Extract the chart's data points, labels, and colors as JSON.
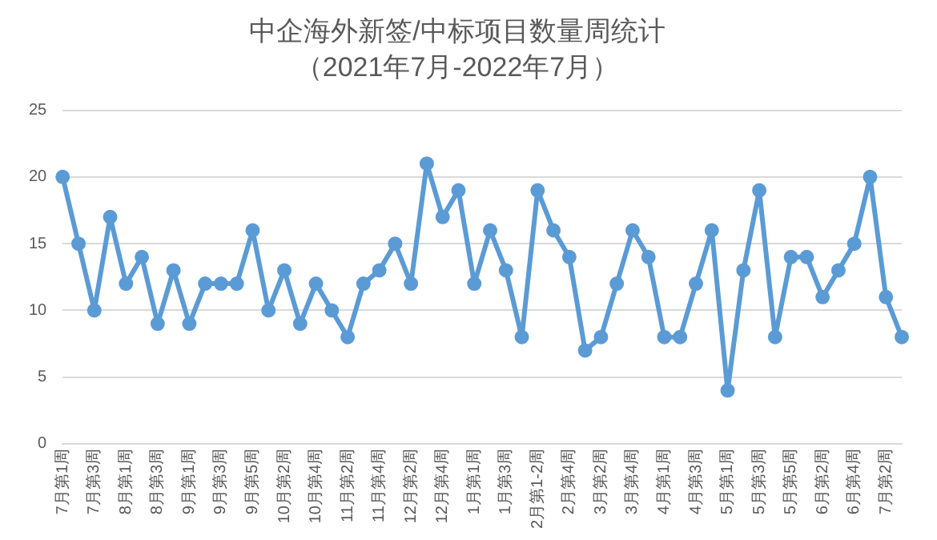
{
  "chart_data": {
    "type": "line",
    "title": "中企海外新签/中标项目数量周统计",
    "subtitle": "（2021年7月-2022年7月）",
    "categories": [
      "7月第1周",
      null,
      "7月第3周",
      null,
      "8月第1周",
      null,
      "8月第3周",
      null,
      "9月第1周",
      null,
      "9月第3周",
      null,
      "9月第5周",
      null,
      "10月第2周",
      null,
      "10月第4周",
      null,
      "11月第2周",
      null,
      "11月第4周",
      null,
      "12月第2周",
      null,
      "12月第4周",
      null,
      "1月第1周",
      null,
      "1月第3周",
      null,
      "2月第1-2周",
      null,
      "2月第4周",
      null,
      "3月第2周",
      null,
      "3月第4周",
      null,
      "4月第1周",
      null,
      "4月第3周",
      null,
      "5月第1周",
      null,
      "5月第3周",
      null,
      "5月第5周",
      null,
      "6月第2周",
      null,
      "6月第4周",
      null,
      "7月第2周",
      null
    ],
    "series": [
      {
        "color": "#5b9bd5",
        "values": [
          20,
          15,
          10,
          17,
          12,
          14,
          9,
          13,
          9,
          12,
          12,
          12,
          16,
          10,
          13,
          9,
          12,
          10,
          8,
          12,
          13,
          15,
          12,
          21,
          17,
          19,
          12,
          16,
          13,
          8,
          19,
          16,
          14,
          7,
          8,
          12,
          16,
          14,
          8,
          8,
          12,
          16,
          4,
          13,
          19,
          8,
          14,
          14,
          11,
          13,
          15,
          20,
          11,
          8
        ]
      }
    ],
    "ylim": [
      0,
      25
    ],
    "yticks": [
      0,
      5,
      10,
      15,
      20,
      25
    ],
    "grid": "y",
    "legend": false,
    "marker": "circle",
    "line_style": "solid"
  }
}
